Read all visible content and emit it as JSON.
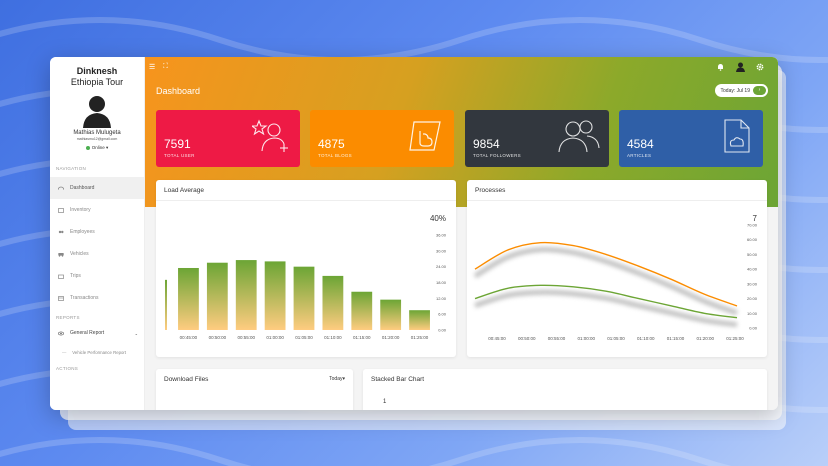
{
  "sidebar": {
    "brand_line1": "Dinknesh",
    "brand_line2": "Ethiopia Tour",
    "user_name": "Mathias Mulugeta",
    "user_email": "mathiasmu12@gmail.com",
    "status": "Online",
    "navigation_label": "NAVIGATION",
    "reports_label": "REPORTS",
    "actions_label": "ACTIONS",
    "items": [
      {
        "label": "Dashboard",
        "icon": "dashboard-icon"
      },
      {
        "label": "Inventory",
        "icon": "inventory-icon"
      },
      {
        "label": "Employees",
        "icon": "employees-icon"
      },
      {
        "label": "Vehicles",
        "icon": "vehicles-icon"
      },
      {
        "label": "Trips",
        "icon": "trips-icon"
      },
      {
        "label": "Transactions",
        "icon": "transactions-icon"
      }
    ],
    "report_items": [
      {
        "label": "General Report"
      },
      {
        "label": "Vehicle Performance Report"
      }
    ]
  },
  "header": {
    "title": "Dashboard",
    "date_label": "Today: Jul 19",
    "date_button": "›"
  },
  "stats": [
    {
      "value": "7591",
      "label": "TOTAL USER",
      "color": "#ee1a45"
    },
    {
      "value": "4875",
      "label": "TOTAL BLOGS",
      "color": "#fb8c00"
    },
    {
      "value": "9854",
      "label": "TOTAL FOLLOWERS",
      "color": "#32373e"
    },
    {
      "value": "4584",
      "label": "ARTICLES",
      "color": "#2f5fa7"
    }
  ],
  "load_panel": {
    "title": "Load Average",
    "current": "40%"
  },
  "processes_panel": {
    "title": "Processes",
    "current": "7"
  },
  "download_panel": {
    "title": "Download Files",
    "filter": "Today"
  },
  "stacked_panel": {
    "title": "Stacked Bar Chart",
    "peek_value": "1"
  },
  "chart_data": [
    {
      "type": "bar",
      "title": "Load Average",
      "categories": [
        "00:45:00",
        "00:50:00",
        "00:55:00",
        "01:00:00",
        "01:05:00",
        "01:10:00",
        "01:15:00",
        "01:20:00",
        "01:25:00"
      ],
      "y_ticks": [
        "36.00",
        "30.00",
        "24.00",
        "18.00",
        "12.00",
        "6.00",
        "0.00"
      ],
      "values": [
        23.5,
        25.5,
        26.5,
        26,
        24,
        20.5,
        14.5,
        11.5,
        7.5
      ],
      "ylim": [
        0,
        36
      ],
      "colors": {
        "top": "#6ca535",
        "bottom": "#ffcc80"
      }
    },
    {
      "type": "line",
      "title": "Processes",
      "categories": [
        "00:45:00",
        "00:50:00",
        "00:55:00",
        "01:00:00",
        "01:05:00",
        "01:10:00",
        "01:15:00",
        "01:20:00",
        "01:25:00"
      ],
      "y_ticks": [
        "70.00",
        "60.00",
        "50.00",
        "40.00",
        "30.00",
        "20.00",
        "10.00",
        "0.00"
      ],
      "ylim": [
        0,
        70
      ],
      "series": [
        {
          "values": [
            40,
            53,
            58,
            56,
            50,
            42,
            33,
            23,
            15
          ],
          "color": "#fb8c00"
        },
        {
          "values": [
            20,
            27,
            29,
            28,
            25,
            20,
            15,
            10,
            7
          ],
          "color": "#6ca535"
        }
      ]
    }
  ]
}
